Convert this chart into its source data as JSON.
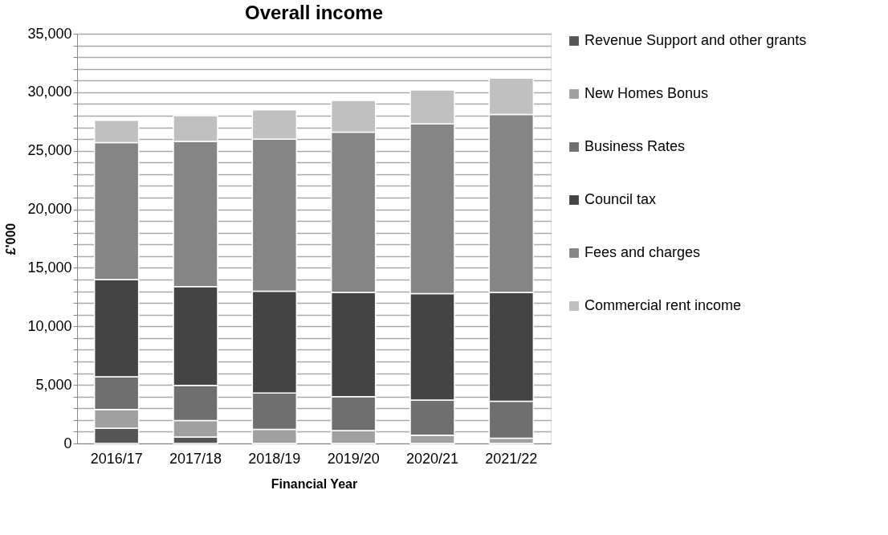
{
  "chart_data": {
    "type": "bar",
    "title": "Overall income",
    "xlabel": "Financial Year",
    "ylabel": "£'000",
    "categories": [
      "2016/17",
      "2017/18",
      "2018/19",
      "2019/20",
      "2020/21",
      "2021/22"
    ],
    "stacked": true,
    "series": [
      {
        "name": "Revenue Support and other grants",
        "color": "#555555",
        "values": [
          1300,
          550,
          0,
          0,
          0,
          0
        ]
      },
      {
        "name": "New Homes Bonus",
        "color": "#a0a0a0",
        "values": [
          1600,
          1400,
          1200,
          1100,
          700,
          450
        ]
      },
      {
        "name": "Business Rates",
        "color": "#6f6f6f",
        "values": [
          2800,
          3000,
          3100,
          2900,
          3000,
          3150
        ]
      },
      {
        "name": "Council tax",
        "color": "#444444",
        "values": [
          8300,
          8450,
          8700,
          8900,
          9100,
          9300
        ]
      },
      {
        "name": "Fees and charges",
        "color": "#858585",
        "values": [
          11700,
          12400,
          13000,
          13700,
          14500,
          15200
        ]
      },
      {
        "name": "Commercial rent income",
        "color": "#c0c0c0",
        "values": [
          1900,
          2200,
          2500,
          2700,
          2900,
          3100
        ]
      }
    ],
    "ylim": [
      0,
      35000
    ],
    "yticks": [
      {
        "value": 0,
        "label": "0"
      },
      {
        "value": 1000,
        "label": null
      },
      {
        "value": 2000,
        "label": null
      },
      {
        "value": 3000,
        "label": null
      },
      {
        "value": 4000,
        "label": null
      },
      {
        "value": 5000,
        "label": "5,000"
      },
      {
        "value": 6000,
        "label": null
      },
      {
        "value": 7000,
        "label": null
      },
      {
        "value": 8000,
        "label": null
      },
      {
        "value": 9000,
        "label": null
      },
      {
        "value": 10000,
        "label": "10,000"
      },
      {
        "value": 11000,
        "label": null
      },
      {
        "value": 12000,
        "label": null
      },
      {
        "value": 13000,
        "label": null
      },
      {
        "value": 14000,
        "label": null
      },
      {
        "value": 15000,
        "label": "15,000"
      },
      {
        "value": 16000,
        "label": null
      },
      {
        "value": 17000,
        "label": null
      },
      {
        "value": 18000,
        "label": null
      },
      {
        "value": 19000,
        "label": null
      },
      {
        "value": 20000,
        "label": "20,000"
      },
      {
        "value": 21000,
        "label": null
      },
      {
        "value": 22000,
        "label": null
      },
      {
        "value": 23000,
        "label": null
      },
      {
        "value": 24000,
        "label": null
      },
      {
        "value": 25000,
        "label": "25,000"
      },
      {
        "value": 26000,
        "label": null
      },
      {
        "value": 27000,
        "label": null
      },
      {
        "value": 28000,
        "label": null
      },
      {
        "value": 29000,
        "label": null
      },
      {
        "value": 30000,
        "label": "30,000"
      },
      {
        "value": 31000,
        "label": null
      },
      {
        "value": 32000,
        "label": null
      },
      {
        "value": 33000,
        "label": null
      },
      {
        "value": 34000,
        "label": null
      },
      {
        "value": 35000,
        "label": "35,000"
      }
    ],
    "grid": true,
    "legend": "right"
  }
}
